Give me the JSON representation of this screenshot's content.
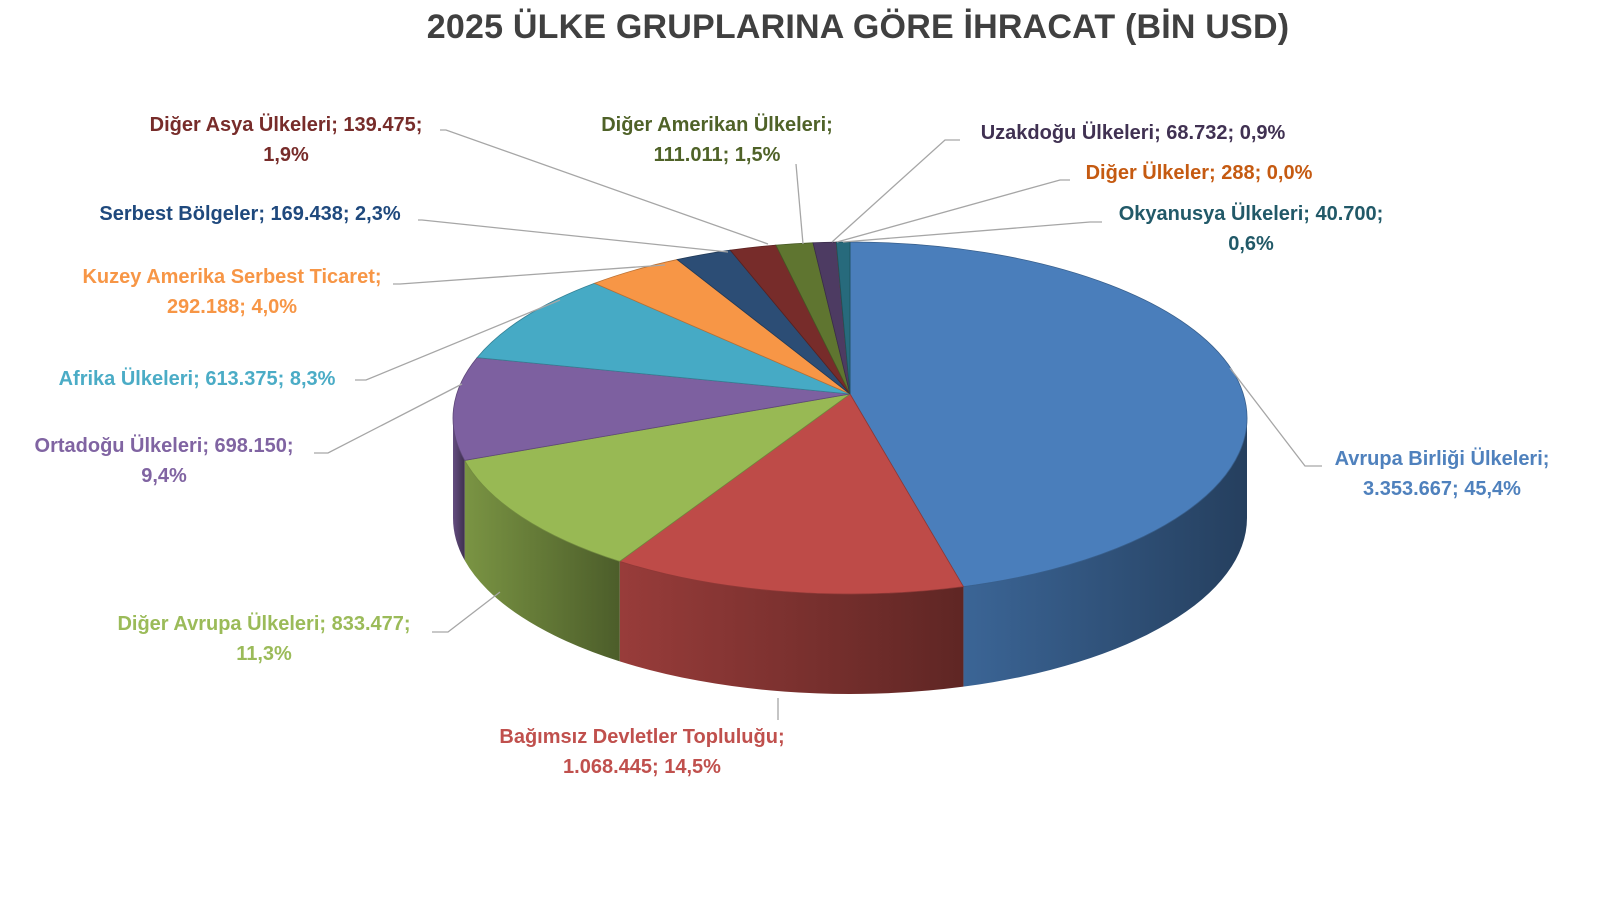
{
  "chart_data": {
    "type": "pie",
    "style": "3d",
    "title": "2025 ÜLKE GRUPLARINA GÖRE İHRACAT (BİN USD)",
    "start_angle": "top, clockwise",
    "slices": [
      {
        "name": "Avrupa Birliği Ülkeleri",
        "value": 3353667,
        "value_label": "3.353.667",
        "percent": "45,4%",
        "color": "#4a7ebb",
        "label_color": "#4f81bd"
      },
      {
        "name": "Bağımsız Devletler Topluluğu",
        "value": 1068445,
        "value_label": "1.068.445",
        "percent": "14,5%",
        "color": "#be4b48",
        "label_color": "#c0504d"
      },
      {
        "name": "Diğer Avrupa Ülkeleri",
        "value": 833477,
        "value_label": "833.477",
        "percent": "11,3%",
        "color": "#98b954",
        "label_color": "#9bbb59"
      },
      {
        "name": "Ortadoğu Ülkeleri",
        "value": 698150,
        "value_label": "698.150",
        "percent": "9,4%",
        "color": "#7d60a0",
        "label_color": "#8064a2"
      },
      {
        "name": "Afrika Ülkeleri",
        "value": 613375,
        "value_label": "613.375",
        "percent": "8,3%",
        "color": "#46aac5",
        "label_color": "#4bacc6"
      },
      {
        "name": "Kuzey Amerika Serbest Ticaret",
        "value": 292188,
        "value_label": "292.188",
        "percent": "4,0%",
        "color": "#f79646",
        "label_color": "#f79646"
      },
      {
        "name": "Serbest Bölgeler",
        "value": 169438,
        "value_label": "169.438",
        "percent": "2,3%",
        "color": "#2c4d75",
        "label_color": "#1f497d"
      },
      {
        "name": "Diğer Asya Ülkeleri",
        "value": 139475,
        "value_label": "139.475",
        "percent": "1,9%",
        "color": "#772c2a",
        "label_color": "#772c2a"
      },
      {
        "name": "Diğer Amerikan Ülkeleri",
        "value": 111011,
        "value_label": "111.011",
        "percent": "1,5%",
        "color": "#5f7530",
        "label_color": "#4f6228"
      },
      {
        "name": "Uzakdoğu Ülkeleri",
        "value": 68732,
        "value_label": "68.732",
        "percent": "0,9%",
        "color": "#4d3b62",
        "label_color": "#403152"
      },
      {
        "name": "Diğer Ülkeler",
        "value": 288,
        "value_label": "288",
        "percent": "0,0%",
        "color": "#b65708",
        "label_color": "#c55a11"
      },
      {
        "name": "Okyanusya Ülkeleri",
        "value": 40700,
        "value_label": "40.700",
        "percent": "0,6%",
        "color": "#276a7c",
        "label_color": "#215968"
      }
    ]
  },
  "labels": [
    {
      "l1": "Avrupa Birliği Ülkeleri;",
      "l2": "3.353.667; 45,4%"
    },
    {
      "l1": "Bağımsız Devletler Topluluğu;",
      "l2": "1.068.445; 14,5%"
    },
    {
      "l1": "Diğer Avrupa Ülkeleri; 833.477;",
      "l2": "11,3%"
    },
    {
      "l1": "Ortadoğu Ülkeleri; 698.150;",
      "l2": "9,4%"
    },
    {
      "l1": "Afrika Ülkeleri; 613.375; 8,3%",
      "l2": ""
    },
    {
      "l1": "Kuzey Amerika Serbest Ticaret;",
      "l2": "292.188; 4,0%"
    },
    {
      "l1": "Serbest Bölgeler; 169.438; 2,3%",
      "l2": ""
    },
    {
      "l1": "Diğer Asya Ülkeleri; 139.475;",
      "l2": "1,9%"
    },
    {
      "l1": "Diğer Amerikan Ülkeleri;",
      "l2": "111.011; 1,5%"
    },
    {
      "l1": "Uzakdoğu Ülkeleri; 68.732; 0,9%",
      "l2": ""
    },
    {
      "l1": "Diğer Ülkeler; 288; 0,0%",
      "l2": ""
    },
    {
      "l1": "Okyanusya Ülkeleri; 40.700;",
      "l2": "0,6%"
    }
  ]
}
